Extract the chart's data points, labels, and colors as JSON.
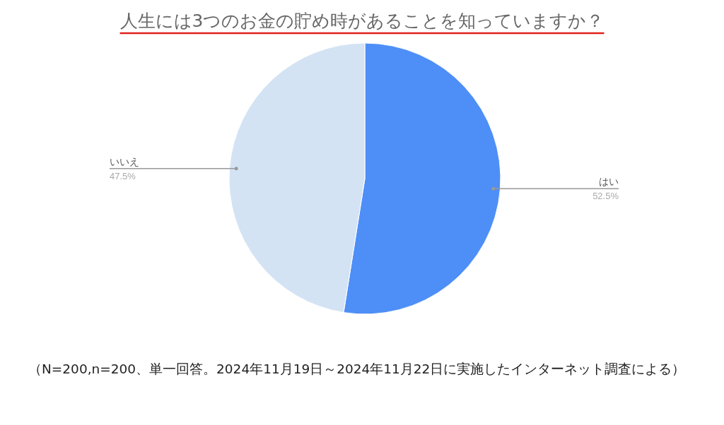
{
  "chart_data": {
    "type": "pie",
    "title": "人生には3つのお金の貯め時があることを知っていますか？",
    "categories": [
      "はい",
      "いいえ"
    ],
    "values": [
      52.5,
      47.5
    ],
    "colors": [
      "#4e8ef7",
      "#d3e3f4"
    ],
    "value_labels": [
      "52.5%",
      "47.5%"
    ],
    "annotations": [
      "（N=200,n=200、単一回答。2024年11月19日～2024年11月22日に実施したインターネット調査による）"
    ]
  }
}
